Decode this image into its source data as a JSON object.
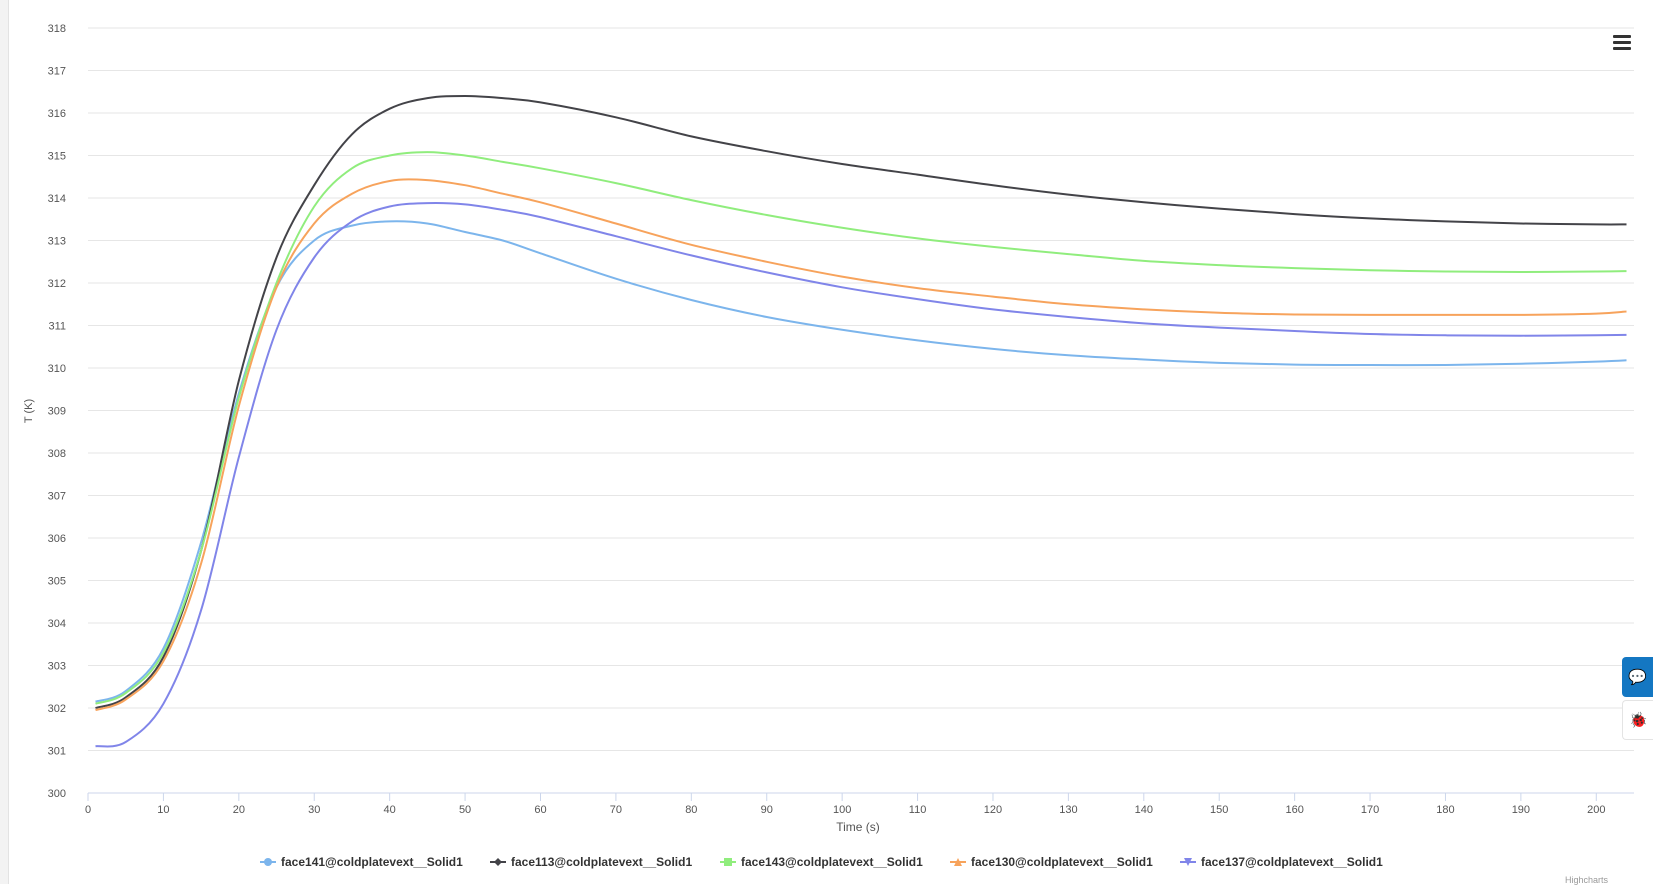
{
  "chart_data": {
    "type": "line",
    "title": "",
    "xlabel": "Time (s)",
    "ylabel": "T (K)",
    "xlim": [
      0,
      205
    ],
    "ylim": [
      300,
      318
    ],
    "xticks": [
      0,
      10,
      20,
      30,
      40,
      50,
      60,
      70,
      80,
      90,
      100,
      110,
      120,
      130,
      140,
      150,
      160,
      170,
      180,
      190,
      200
    ],
    "yticks": [
      300,
      301,
      302,
      303,
      304,
      305,
      306,
      307,
      308,
      309,
      310,
      311,
      312,
      313,
      314,
      315,
      316,
      317,
      318
    ],
    "grid": true,
    "legend": "bottom",
    "x": [
      1,
      5,
      10,
      15,
      20,
      25,
      30,
      35,
      40,
      45,
      50,
      55,
      60,
      70,
      80,
      90,
      100,
      110,
      120,
      130,
      140,
      150,
      160,
      170,
      180,
      190,
      200,
      204
    ],
    "series": [
      {
        "name": "face141@coldplatevext__Solid1",
        "color": "#7cb5ec",
        "marker": "circle",
        "values": [
          302.15,
          302.4,
          303.4,
          305.9,
          309.4,
          311.9,
          313.0,
          313.35,
          313.45,
          313.4,
          313.2,
          313.0,
          312.7,
          312.1,
          311.6,
          311.2,
          310.9,
          310.65,
          310.45,
          310.3,
          310.2,
          310.12,
          310.08,
          310.07,
          310.07,
          310.1,
          310.15,
          310.18
        ]
      },
      {
        "name": "face113@coldplatevext__Solid1",
        "color": "#434348",
        "marker": "diamond",
        "values": [
          302.0,
          302.25,
          303.2,
          305.7,
          309.7,
          312.6,
          314.3,
          315.5,
          316.1,
          316.35,
          316.4,
          316.35,
          316.25,
          315.9,
          315.45,
          315.1,
          314.8,
          314.55,
          314.3,
          314.08,
          313.9,
          313.75,
          313.62,
          313.52,
          313.45,
          313.4,
          313.38,
          313.38
        ]
      },
      {
        "name": "face143@coldplatevext__Solid1",
        "color": "#90ed7d",
        "marker": "square",
        "values": [
          302.1,
          302.35,
          303.3,
          305.7,
          309.3,
          312.0,
          313.8,
          314.7,
          315.0,
          315.08,
          315.0,
          314.85,
          314.7,
          314.35,
          313.95,
          313.6,
          313.3,
          313.05,
          312.85,
          312.68,
          312.52,
          312.42,
          312.35,
          312.3,
          312.27,
          312.26,
          312.27,
          312.28
        ]
      },
      {
        "name": "face130@coldplatevext__Solid1",
        "color": "#f7a35c",
        "marker": "triangle",
        "values": [
          301.95,
          302.2,
          303.1,
          305.4,
          309.1,
          311.9,
          313.4,
          314.1,
          314.4,
          314.42,
          314.3,
          314.1,
          313.9,
          313.4,
          312.9,
          312.5,
          312.15,
          311.88,
          311.68,
          311.5,
          311.38,
          311.3,
          311.26,
          311.25,
          311.25,
          311.25,
          311.28,
          311.33
        ]
      },
      {
        "name": "face137@coldplatevext__Solid1",
        "color": "#8085e9",
        "marker": "triangle-down",
        "values": [
          301.1,
          301.2,
          302.1,
          304.3,
          307.9,
          310.9,
          312.6,
          313.45,
          313.8,
          313.88,
          313.85,
          313.72,
          313.55,
          313.1,
          312.65,
          312.25,
          311.9,
          311.62,
          311.38,
          311.2,
          311.05,
          310.95,
          310.87,
          310.8,
          310.77,
          310.76,
          310.77,
          310.78
        ]
      }
    ]
  },
  "ui": {
    "menu_icon": "hamburger-icon",
    "chat_icon": "chat-icon",
    "bug_icon": "bug-icon",
    "credit": "Highcharts"
  }
}
